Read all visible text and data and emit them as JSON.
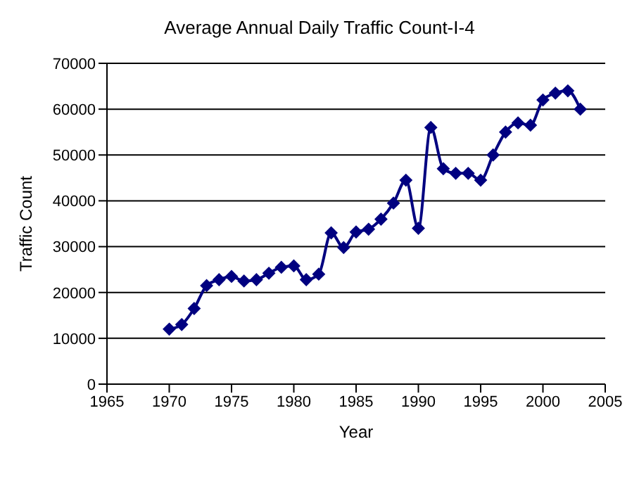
{
  "chart_data": {
    "type": "line",
    "title": "Average Annual Daily Traffic Count-I-4",
    "xlabel": "Year",
    "ylabel": "Traffic Count",
    "x": [
      1970,
      1971,
      1972,
      1973,
      1974,
      1975,
      1976,
      1977,
      1978,
      1979,
      1980,
      1981,
      1982,
      1983,
      1984,
      1985,
      1986,
      1987,
      1988,
      1989,
      1990,
      1991,
      1992,
      1993,
      1994,
      1995,
      1996,
      1997,
      1998,
      1999,
      2000,
      2001,
      2002,
      2003
    ],
    "series": [
      {
        "color": "#000080",
        "values": [
          12000,
          13000,
          16500,
          21500,
          22800,
          23500,
          22500,
          22800,
          24200,
          25500,
          25800,
          22800,
          24000,
          33000,
          29800,
          33200,
          33800,
          36000,
          39500,
          44500,
          34000,
          56000,
          47000,
          46000,
          46000,
          44500,
          50000,
          55000,
          57000,
          56500,
          62000,
          63500,
          64000,
          60000
        ]
      }
    ],
    "xlim": [
      1965,
      2005
    ],
    "xticks": [
      1965,
      1970,
      1975,
      1980,
      1985,
      1990,
      1995,
      2000,
      2005
    ],
    "ylim": [
      0,
      70000
    ],
    "yticks": [
      0,
      10000,
      20000,
      30000,
      40000,
      50000,
      60000,
      70000
    ],
    "grid": "y",
    "legend": false,
    "marker": "diamond",
    "line_style": "solid"
  }
}
